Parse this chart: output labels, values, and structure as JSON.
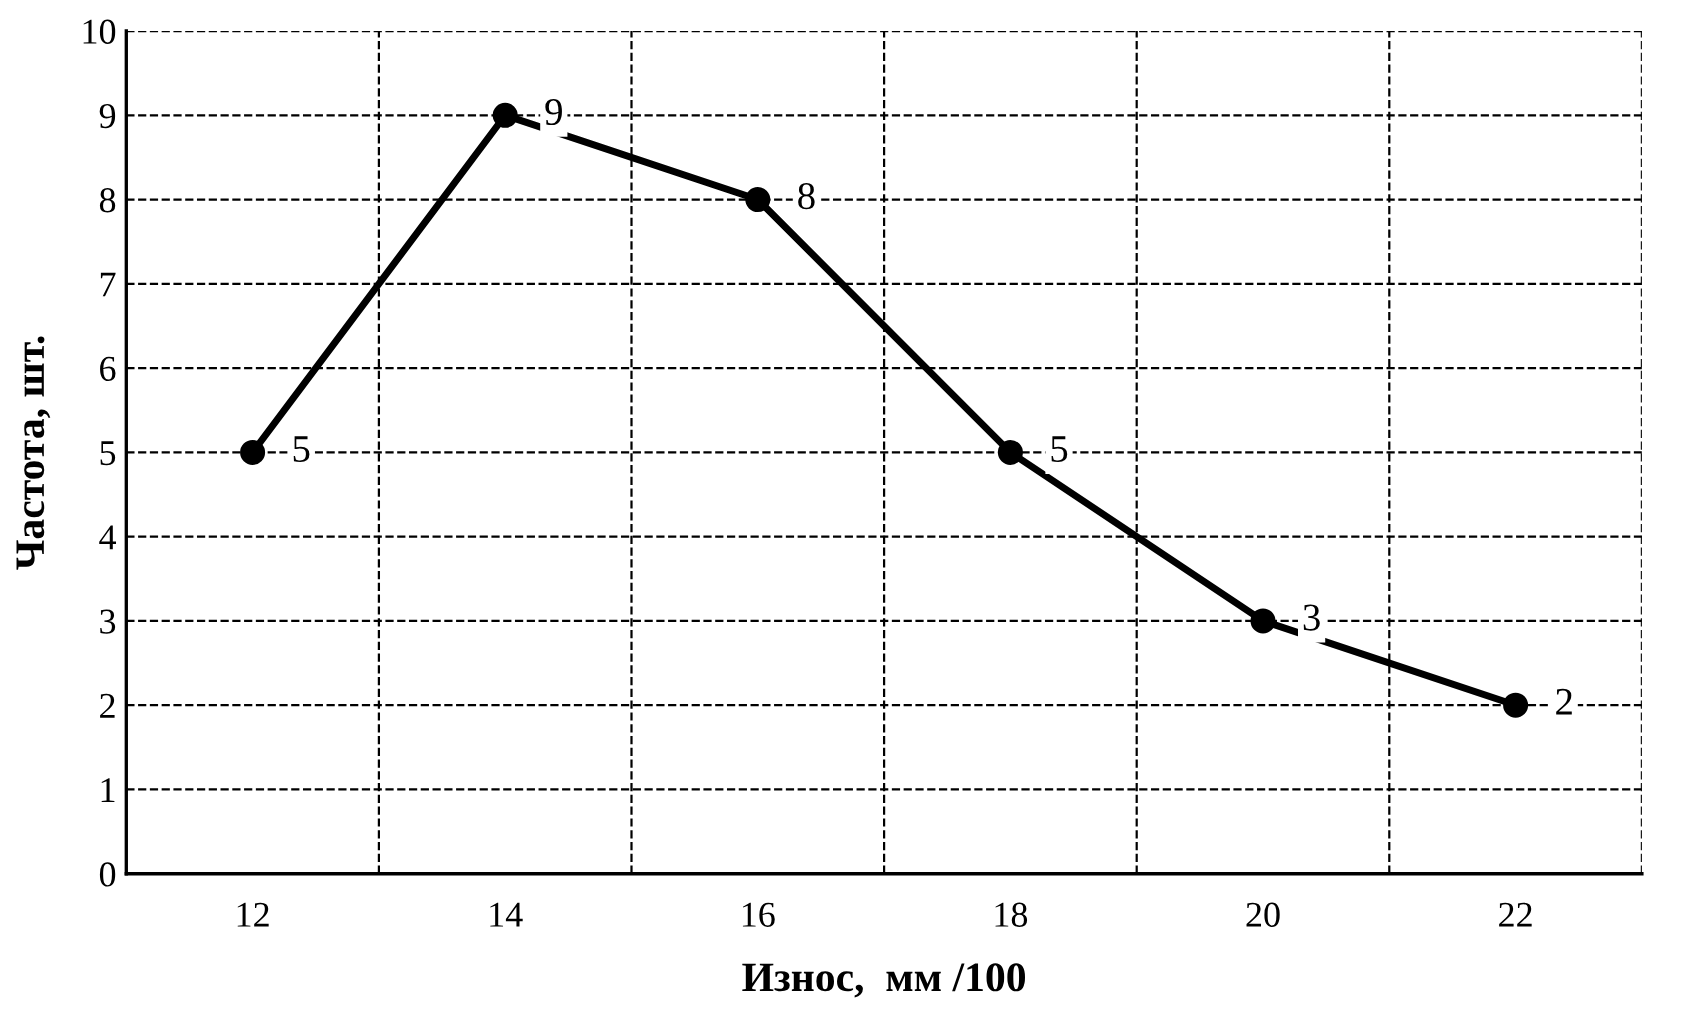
{
  "chart_data": {
    "type": "line",
    "xlabel": "Износ,  мм /100",
    "ylabel": "Частота, шт.",
    "categories": [
      "12",
      "14",
      "16",
      "18",
      "20",
      "22"
    ],
    "series": [
      {
        "color": "#000000",
        "values": [
          5,
          9,
          8,
          5,
          3,
          2
        ]
      }
    ],
    "ylim": [
      0,
      10
    ],
    "yticks": [
      0,
      1,
      2,
      3,
      4,
      5,
      6,
      7,
      8,
      9,
      10
    ],
    "grid": true,
    "marker": "circle",
    "line_style": "solid",
    "data_labels": true
  }
}
